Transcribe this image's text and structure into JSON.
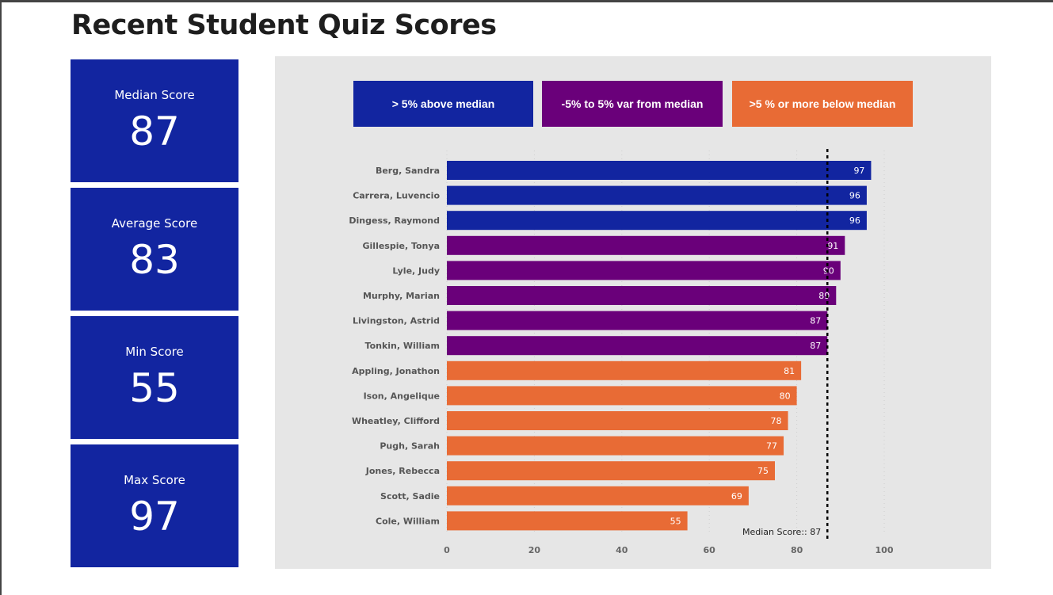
{
  "title": "Recent Student Quiz Scores",
  "kpis": [
    {
      "label": "Median Score",
      "value": "87"
    },
    {
      "label": "Average Score",
      "value": "83"
    },
    {
      "label": "Min Score",
      "value": "55"
    },
    {
      "label": "Max Score",
      "value": "97"
    }
  ],
  "legend": [
    {
      "label": "> 5% above median",
      "color": "#1225a0"
    },
    {
      "label": "-5% to 5% var from median",
      "color": "#6a007a"
    },
    {
      "label": ">5 % or more below median",
      "color": "#e86b35"
    }
  ],
  "chart_data": {
    "type": "bar",
    "orientation": "horizontal",
    "categories": [
      "Berg, Sandra",
      "Carrera, Luvencio",
      "Dingess, Raymond",
      "Gillespie, Tonya",
      "Lyle, Judy",
      "Murphy, Marian",
      "Livingston, Astrid",
      "Tonkin, William",
      "Appling, Jonathon",
      "Ison, Angelique",
      "Wheatley, Clifford",
      "Pugh, Sarah",
      "Jones, Rebecca",
      "Scott, Sadie",
      "Cole, William"
    ],
    "values": [
      97,
      96,
      96,
      91,
      90,
      89,
      87,
      87,
      81,
      80,
      78,
      77,
      75,
      69,
      55
    ],
    "groups": [
      "above",
      "above",
      "above",
      "within",
      "within",
      "within",
      "within",
      "within",
      "below",
      "below",
      "below",
      "below",
      "below",
      "below",
      "below"
    ],
    "group_colors": {
      "above": "#1225a0",
      "within": "#6a007a",
      "below": "#e86b35"
    },
    "xlim": [
      0,
      100
    ],
    "xticks": [
      0,
      20,
      40,
      60,
      80,
      100
    ],
    "median_line": {
      "value": 87,
      "label": "Median Score:: 87"
    },
    "grid": true
  }
}
